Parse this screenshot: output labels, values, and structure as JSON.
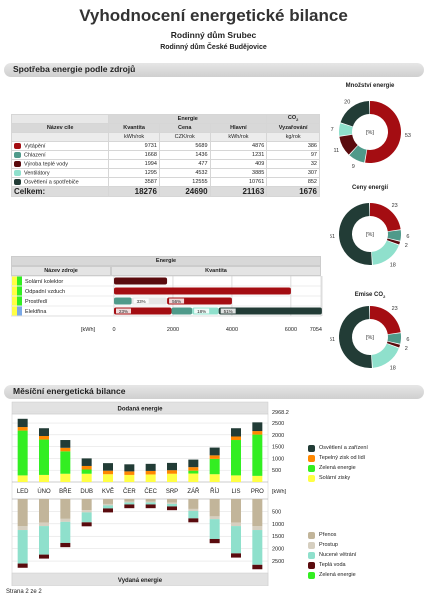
{
  "header": {
    "title": "Vyhodnocení energetické bilance",
    "subtitle": "Rodinný dům Srubec",
    "subtitle2": "Rodinný dům České Budějovice"
  },
  "section1": {
    "title": "Spotřeba energie podle zdrojů"
  },
  "section2": {
    "title": "Měsíční energetická bilance"
  },
  "table1": {
    "group_energie": "Energie",
    "group_co2": "CO",
    "group_co2_sub": "2",
    "col_name": "Název cíle",
    "col_quantity": "Kvantita",
    "col_price": "Cena",
    "col_main": "Hlavní",
    "col_emission": "Vyzařování",
    "unit_quantity": "kWh/rok",
    "unit_price": "CZK/rok",
    "unit_main": "kWh/rok",
    "unit_emission": "kg/rok",
    "rows": [
      {
        "name": "Vytápění",
        "color": "#a40d12",
        "quantity": "9731",
        "price": "5689",
        "main": "4876",
        "emission": "386"
      },
      {
        "name": "Chlazení",
        "color": "#4f9a8a",
        "quantity": "1668",
        "price": "1436",
        "main": "1231",
        "emission": "97"
      },
      {
        "name": "Výroba teplé vody",
        "color": "#5a0b0e",
        "quantity": "1994",
        "price": "477",
        "main": "409",
        "emission": "32"
      },
      {
        "name": "Ventilátory",
        "color": "#8fe0cc",
        "quantity": "1295",
        "price": "4532",
        "main": "3885",
        "emission": "307"
      },
      {
        "name": "Osvětlení a spotřebiče",
        "color": "#223c36",
        "quantity": "3587",
        "price": "12555",
        "main": "10761",
        "emission": "852"
      }
    ],
    "total": {
      "label": "Celkem:",
      "quantity": "18276",
      "price": "24690",
      "main": "21163",
      "emission": "1676"
    }
  },
  "donuts": [
    {
      "title": "Množství energie",
      "title_sub": "",
      "center": "[%]",
      "labels": [
        "53",
        "9",
        "11",
        "7",
        "20"
      ],
      "values": [
        53,
        9,
        11,
        7,
        20
      ]
    },
    {
      "title": "Ceny energií",
      "title_sub": "",
      "center": "[%]",
      "labels": [
        "23",
        "6",
        "2",
        "18",
        "51"
      ],
      "values": [
        23,
        6,
        2,
        18,
        51
      ]
    },
    {
      "title": "Emise CO",
      "title_sub": "2",
      "center": "[%]",
      "labels": [
        "23",
        "6",
        "2",
        "18",
        "51"
      ],
      "values": [
        23,
        6,
        2,
        18,
        51
      ]
    }
  ],
  "colors": {
    "vytapeni": "#a40d12",
    "chlazeni": "#4f9a8a",
    "tepla_voda": "#5a0b0e",
    "ventilatory": "#8fe0cc",
    "osvetleni": "#223c36",
    "solar": "#ffff44",
    "zelena": "#33ee22",
    "tepelny_zisk": "#ff8800",
    "prenos": "#c2b59a",
    "prostup": "#d6cfc0"
  },
  "table2": {
    "group_label": "Energie",
    "col_source": "Název zdroje",
    "col_quantity": "Kvantita",
    "axis_unit": "[kWh]",
    "axis_ticks": [
      "0",
      "2000",
      "4000",
      "6000",
      "7054"
    ],
    "axis_max": 7054,
    "rows": [
      {
        "name": "Solární kolektor",
        "markers": [
          "#ffff44",
          "#33ee22"
        ],
        "segments": [
          {
            "value": 1800,
            "color": "#5a0b0e",
            "label": ""
          }
        ]
      },
      {
        "name": "Odpadní vzduch",
        "markers": [
          "#ffff44",
          "#33ee22"
        ],
        "segments": [
          {
            "value": 6000,
            "color": "#a40d12",
            "label": ""
          }
        ]
      },
      {
        "name": "Prostředí",
        "markers": [
          "#ffff44",
          "#33ee22"
        ],
        "segments": [
          {
            "value": 600,
            "color": "#4f9a8a",
            "label": ""
          },
          {
            "value": 1200,
            "color": "#e6e6e6",
            "label": "33%"
          },
          {
            "value": 2200,
            "color": "#a40d12",
            "label": "56%"
          }
        ]
      },
      {
        "name": "Elektřina",
        "markers": [
          "#ffff44",
          "#7aa8e6"
        ],
        "segments": [
          {
            "value": 1950,
            "color": "#a40d12",
            "label": "23%"
          },
          {
            "value": 700,
            "color": "#4f9a8a",
            "label": ""
          },
          {
            "value": 900,
            "color": "#8fe0cc",
            "label": "18%"
          },
          {
            "value": 3500,
            "color": "#223c36",
            "label": "51%"
          }
        ]
      }
    ]
  },
  "chart_data": {
    "type": "bar",
    "title_top": "Dodaná energie",
    "title_bottom": "Vydaná energie",
    "unit": "[kWh]",
    "categories": [
      "LED",
      "ÚNO",
      "BŘE",
      "DUB",
      "KVĚ",
      "ČER",
      "ČEC",
      "SRP",
      "ZÁŘ",
      "ŘÍJ",
      "LIS",
      "PRO"
    ],
    "top_ticks": [
      "2968.2",
      "2500",
      "2000",
      "1500",
      "1000",
      "500"
    ],
    "top_max": 2968.2,
    "bottom_ticks": [
      "500",
      "1000",
      "1500",
      "2000",
      "2500"
    ],
    "bottom_max": 2900,
    "top_series": [
      {
        "name": "Osvětlení a zařízení",
        "color": "#223c36",
        "values": [
          350,
          330,
          330,
          320,
          320,
          300,
          300,
          310,
          320,
          330,
          350,
          370
        ]
      },
      {
        "name": "Tepelný zisk od lidí",
        "color": "#ff8800",
        "values": [
          150,
          150,
          150,
          150,
          150,
          150,
          150,
          150,
          150,
          150,
          150,
          150
        ]
      },
      {
        "name": "Zelená energie",
        "color": "#33ee22",
        "values": [
          1900,
          1500,
          950,
          180,
          0,
          0,
          0,
          0,
          120,
          650,
          1500,
          1750
        ]
      },
      {
        "name": "Solární zisky",
        "color": "#ffff44",
        "values": [
          280,
          300,
          350,
          350,
          330,
          300,
          320,
          350,
          360,
          330,
          280,
          260
        ]
      }
    ],
    "bottom_series": [
      {
        "name": "Přenos",
        "color": "#c2b59a",
        "values": [
          1100,
          950,
          800,
          450,
          200,
          100,
          100,
          150,
          400,
          700,
          950,
          1100
        ]
      },
      {
        "name": "Prostup",
        "color": "#d6cfc0",
        "values": [
          150,
          140,
          120,
          90,
          60,
          40,
          40,
          50,
          80,
          110,
          140,
          150
        ]
      },
      {
        "name": "Nucené větrání",
        "color": "#8fe0cc",
        "values": [
          1350,
          1150,
          850,
          400,
          120,
          80,
          80,
          100,
          300,
          800,
          1100,
          1400
        ]
      },
      {
        "name": "Teplá voda",
        "color": "#5a0b0e",
        "values": [
          170,
          160,
          170,
          160,
          160,
          150,
          150,
          150,
          160,
          170,
          170,
          180
        ]
      },
      {
        "name": "Zelená energie",
        "color": "#33ee22",
        "values": [
          0,
          0,
          0,
          0,
          0,
          0,
          0,
          0,
          0,
          0,
          0,
          0
        ]
      }
    ]
  },
  "footer": {
    "page": "Strana 2 ze 2"
  }
}
